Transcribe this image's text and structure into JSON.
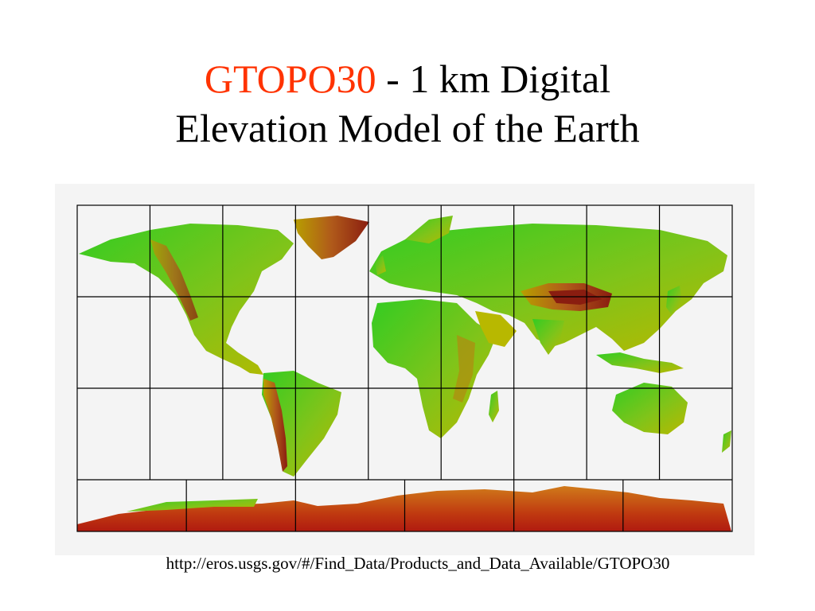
{
  "title": {
    "accent": "GTOPO30",
    "rest_line1": " - 1 km Digital",
    "line2": "Elevation Model of the Earth"
  },
  "source_url": "http://eros.usgs.gov/#/Find_Data/Products_and_Data_Available/GTOPO30",
  "map": {
    "tile_grid": {
      "main_rows": 3,
      "main_cols": 9,
      "antarctica_cols": 6
    },
    "colors": {
      "ocean": "#f4f4f4",
      "lowland": "#33cc22",
      "mid": "#b8b800",
      "high": "#b05a1a",
      "peak": "#8a1d10",
      "grid_line": "#000000"
    }
  }
}
